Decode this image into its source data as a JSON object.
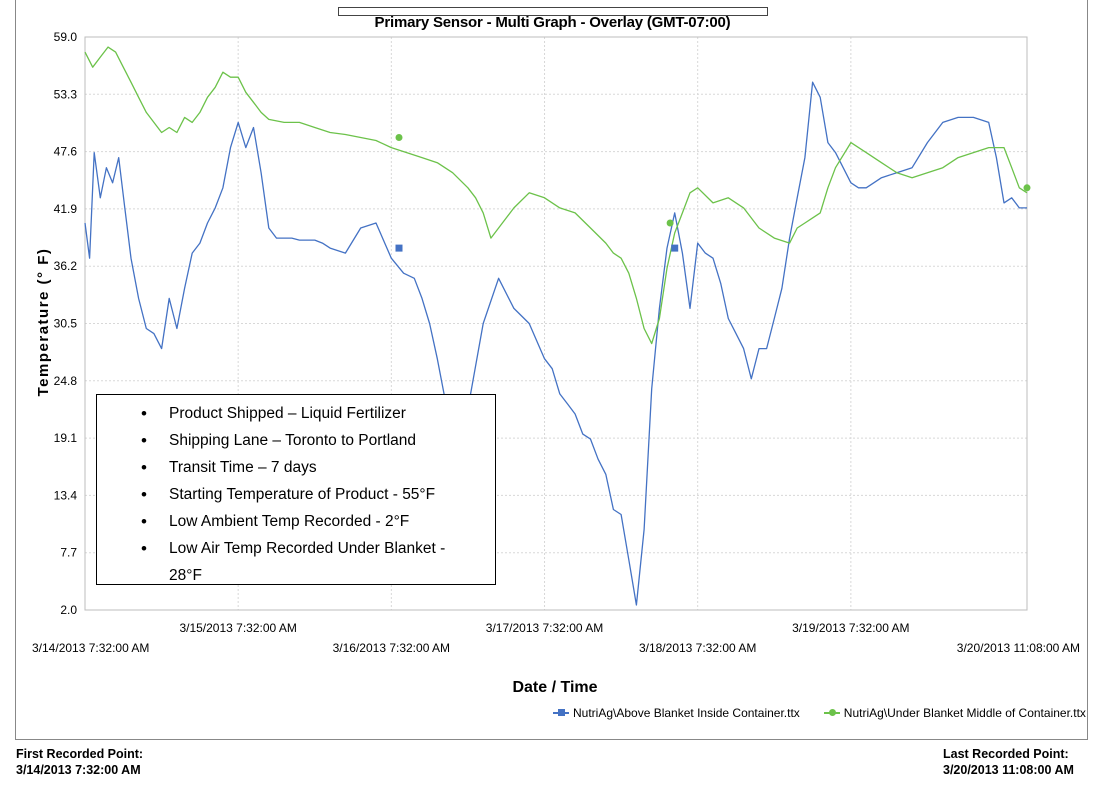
{
  "chart_data": {
    "type": "line",
    "title": "Primary Sensor - Multi Graph - Overlay  (GMT-07:00)",
    "xlabel": "Date / Time",
    "ylabel": "Temperature (° F)",
    "ylim": [
      2.0,
      59.0
    ],
    "yticks": [
      "59.0",
      "53.3",
      "47.6",
      "41.9",
      "36.2",
      "30.5",
      "24.8",
      "19.1",
      "13.4",
      "7.7",
      "2.0"
    ],
    "xticks_upper": [
      "3/15/2013 7:32:00 AM",
      "3/17/2013 7:32:00 AM",
      "3/19/2013 7:32:00 AM"
    ],
    "xticks_lower": [
      "3/14/2013 7:32:00 AM",
      "3/16/2013 7:32:00 AM",
      "3/18/2013 7:32:00 AM",
      "3/20/2013 11:08:00 AM"
    ],
    "x_unit": "days since 3/14/2013 7:32:00 AM",
    "xlim": [
      0,
      6.15
    ],
    "grid": true,
    "legend_position": "bottom-right",
    "series": [
      {
        "name": "NutriAg\\Above Blanket Inside Container.ttx",
        "color": "#4472c4",
        "marker": "square",
        "x": [
          0,
          0.03,
          0.06,
          0.1,
          0.14,
          0.18,
          0.22,
          0.26,
          0.3,
          0.35,
          0.4,
          0.45,
          0.5,
          0.55,
          0.6,
          0.65,
          0.7,
          0.75,
          0.8,
          0.85,
          0.9,
          0.95,
          1.0,
          1.05,
          1.1,
          1.15,
          1.2,
          1.25,
          1.3,
          1.35,
          1.4,
          1.45,
          1.5,
          1.55,
          1.6,
          1.7,
          1.8,
          1.9,
          2.0,
          2.08,
          2.15,
          2.2,
          2.25,
          2.3,
          2.35,
          2.4,
          2.5,
          2.6,
          2.7,
          2.8,
          2.9,
          3.0,
          3.05,
          3.1,
          3.15,
          3.2,
          3.25,
          3.3,
          3.35,
          3.4,
          3.45,
          3.5,
          3.55,
          3.6,
          3.65,
          3.7,
          3.75,
          3.8,
          3.85,
          3.9,
          3.95,
          4.0,
          4.05,
          4.1,
          4.15,
          4.2,
          4.25,
          4.3,
          4.35,
          4.4,
          4.45,
          4.5,
          4.55,
          4.6,
          4.65,
          4.7,
          4.75,
          4.8,
          4.85,
          4.9,
          4.95,
          5.0,
          5.05,
          5.1,
          5.15,
          5.2,
          5.3,
          5.4,
          5.5,
          5.6,
          5.7,
          5.8,
          5.9,
          5.95,
          6.0,
          6.05,
          6.1,
          6.15
        ],
        "y": [
          40.5,
          37.0,
          47.5,
          43.0,
          46.0,
          44.5,
          47.0,
          42.0,
          37.0,
          33.0,
          30.0,
          29.5,
          28.0,
          33.0,
          30.0,
          34.0,
          37.5,
          38.5,
          40.5,
          42.0,
          44.0,
          48.0,
          50.5,
          48.0,
          50.0,
          45.5,
          40.0,
          39.0,
          39.0,
          39.0,
          38.8,
          38.8,
          38.8,
          38.5,
          38.0,
          37.5,
          40.0,
          40.5,
          37.0,
          35.5,
          35.0,
          33.0,
          30.5,
          27.0,
          23.0,
          18.5,
          22.0,
          30.5,
          35.0,
          32.0,
          30.5,
          27.0,
          26.0,
          23.5,
          22.5,
          21.5,
          19.5,
          19.0,
          17.0,
          15.5,
          12.0,
          11.5,
          7.0,
          2.5,
          10.0,
          24.0,
          32.0,
          38.0,
          41.5,
          37.5,
          32.0,
          38.5,
          37.5,
          37.0,
          34.5,
          31.0,
          29.5,
          28.0,
          25.0,
          28.0,
          28.0,
          31.0,
          34.0,
          39.0,
          43.0,
          47.0,
          54.5,
          53.0,
          48.5,
          47.5,
          46.0,
          44.5,
          44.0,
          44.0,
          44.5,
          45.0,
          45.5,
          46.0,
          48.5,
          50.5,
          51.0,
          51.0,
          50.5,
          47.0,
          42.5,
          43.0,
          42.0,
          42.0
        ]
      },
      {
        "name": "NutriAg\\Under Blanket Middle of Container.ttx",
        "color": "#6cc24a",
        "marker": "circle",
        "x": [
          0,
          0.05,
          0.1,
          0.15,
          0.2,
          0.25,
          0.3,
          0.35,
          0.4,
          0.45,
          0.5,
          0.55,
          0.6,
          0.65,
          0.7,
          0.75,
          0.8,
          0.85,
          0.9,
          0.95,
          1.0,
          1.05,
          1.1,
          1.15,
          1.2,
          1.3,
          1.4,
          1.5,
          1.6,
          1.7,
          1.8,
          1.9,
          2.0,
          2.1,
          2.2,
          2.3,
          2.4,
          2.5,
          2.55,
          2.6,
          2.65,
          2.7,
          2.8,
          2.9,
          3.0,
          3.1,
          3.2,
          3.3,
          3.4,
          3.45,
          3.5,
          3.55,
          3.6,
          3.65,
          3.7,
          3.75,
          3.8,
          3.85,
          3.9,
          3.95,
          4.0,
          4.1,
          4.2,
          4.3,
          4.4,
          4.5,
          4.6,
          4.65,
          4.7,
          4.75,
          4.8,
          4.85,
          4.9,
          5.0,
          5.1,
          5.2,
          5.3,
          5.4,
          5.5,
          5.6,
          5.7,
          5.8,
          5.9,
          6.0,
          6.05,
          6.1,
          6.15
        ],
        "y": [
          57.5,
          56.0,
          57.0,
          58.0,
          57.5,
          56.0,
          54.5,
          53.0,
          51.5,
          50.5,
          49.5,
          50.0,
          49.5,
          51.0,
          50.5,
          51.5,
          53.0,
          54.0,
          55.5,
          55.0,
          55.0,
          53.5,
          52.5,
          51.5,
          50.8,
          50.5,
          50.5,
          50.0,
          49.5,
          49.3,
          49.0,
          48.7,
          48.0,
          47.5,
          47.0,
          46.5,
          45.5,
          44.0,
          43.0,
          41.5,
          39.0,
          40.0,
          42.0,
          43.5,
          43.0,
          42.0,
          41.5,
          40.0,
          38.5,
          37.5,
          37.0,
          35.5,
          33.0,
          30.0,
          28.5,
          31.0,
          36.0,
          39.5,
          41.5,
          43.5,
          44.0,
          42.5,
          43.0,
          42.0,
          40.0,
          39.0,
          38.5,
          40.0,
          40.5,
          41.0,
          41.5,
          44.0,
          46.0,
          48.5,
          47.5,
          46.5,
          45.5,
          45.0,
          45.5,
          46.0,
          47.0,
          47.5,
          48.0,
          48.0,
          46.0,
          44.0,
          43.5
        ]
      }
    ],
    "markers": [
      {
        "series": 0,
        "x": 2.05,
        "y": 38.0
      },
      {
        "series": 0,
        "x": 3.85,
        "y": 38.0
      },
      {
        "series": 1,
        "x": 2.05,
        "y": 49.0
      },
      {
        "series": 1,
        "x": 3.82,
        "y": 40.5
      },
      {
        "series": 1,
        "x": 6.15,
        "y": 44.0
      }
    ]
  },
  "annotation": {
    "items": [
      "Product Shipped – Liquid Fertilizer",
      "Shipping Lane – Toronto to Portland",
      "Transit Time – 7 days",
      "Starting Temperature of Product - 55°F",
      "Low Ambient Temp Recorded - 2°F",
      "Low Air Temp Recorded Under Blanket - 28°F"
    ]
  },
  "footer": {
    "first_label": "First Recorded Point:",
    "first_value": "3/14/2013 7:32:00 AM",
    "last_label": "Last Recorded Point:",
    "last_value": "3/20/2013 11:08:00 AM"
  }
}
